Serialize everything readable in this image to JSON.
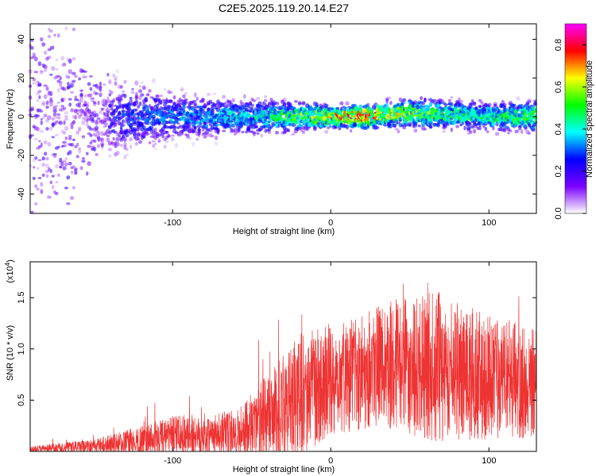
{
  "figure": {
    "title": "C2E5.2025.119.20.14.E27"
  },
  "chart_data": [
    {
      "type": "heatmap",
      "xlabel": "Height of straight line (km)",
      "ylabel": "Frequency (Hz)",
      "xlim": [
        -190,
        130
      ],
      "ylim": [
        -50,
        48
      ],
      "xticks": [
        -100,
        0,
        100
      ],
      "yticks": [
        -40,
        -20,
        0,
        20,
        40
      ],
      "colorbar": {
        "label": "Normalized spectral amplitude",
        "range": [
          0,
          0.9
        ],
        "ticks": [
          0.0,
          0.2,
          0.4,
          0.6,
          0.8
        ],
        "colors": [
          "#ffffff",
          "#7b00ff",
          "#0000ff",
          "#00ffff",
          "#00ff00",
          "#ffff00",
          "#ff0000",
          "#ff00ff"
        ]
      },
      "band_profile": [
        {
          "x": -190,
          "center": 0,
          "spread": 45,
          "amplitude": 0.15
        },
        {
          "x": -150,
          "center": 0,
          "spread": 15,
          "amplitude": 0.2
        },
        {
          "x": -100,
          "center": 0,
          "spread": 8,
          "amplitude": 0.3
        },
        {
          "x": -50,
          "center": 0,
          "spread": 6,
          "amplitude": 0.35
        },
        {
          "x": 0,
          "center": 0,
          "spread": 4,
          "amplitude": 0.6
        },
        {
          "x": 20,
          "center": 0,
          "spread": 4,
          "amplitude": 0.7
        },
        {
          "x": 50,
          "center": 2,
          "spread": 5,
          "amplitude": 0.5
        },
        {
          "x": 100,
          "center": 0,
          "spread": 5,
          "amplitude": 0.4
        },
        {
          "x": 130,
          "center": 0,
          "spread": 5,
          "amplitude": 0.5
        }
      ]
    },
    {
      "type": "line",
      "xlabel": "Height of straight line (km)",
      "ylabel": "SNR (10 * v/v)",
      "y_multiplier_label": "(x10",
      "y_multiplier_exponent": "4",
      "y_multiplier_close": ")",
      "xlim": [
        -190,
        130
      ],
      "ylim": [
        0,
        1.85
      ],
      "xticks": [
        -100,
        0,
        100
      ],
      "yticks": [
        0.5,
        1.0,
        1.5
      ],
      "ytick_labels": [
        "0.5",
        "1.0",
        "1.5"
      ],
      "series": [
        {
          "color": "#ee3333",
          "envelope": [
            {
              "x": -190,
              "mean": 0.02,
              "range": 0.03
            },
            {
              "x": -150,
              "mean": 0.05,
              "range": 0.07
            },
            {
              "x": -120,
              "mean": 0.1,
              "range": 0.15
            },
            {
              "x": -100,
              "mean": 0.15,
              "range": 0.2
            },
            {
              "x": -60,
              "mean": 0.18,
              "range": 0.22
            },
            {
              "x": -40,
              "mean": 0.3,
              "range": 0.45
            },
            {
              "x": -20,
              "mean": 0.55,
              "range": 0.6
            },
            {
              "x": 0,
              "mean": 0.7,
              "range": 0.55
            },
            {
              "x": 30,
              "mean": 0.85,
              "range": 0.6
            },
            {
              "x": 70,
              "mean": 0.82,
              "range": 0.75
            },
            {
              "x": 100,
              "mean": 0.72,
              "range": 0.6
            },
            {
              "x": 130,
              "mean": 0.68,
              "range": 0.55
            }
          ]
        }
      ]
    }
  ]
}
